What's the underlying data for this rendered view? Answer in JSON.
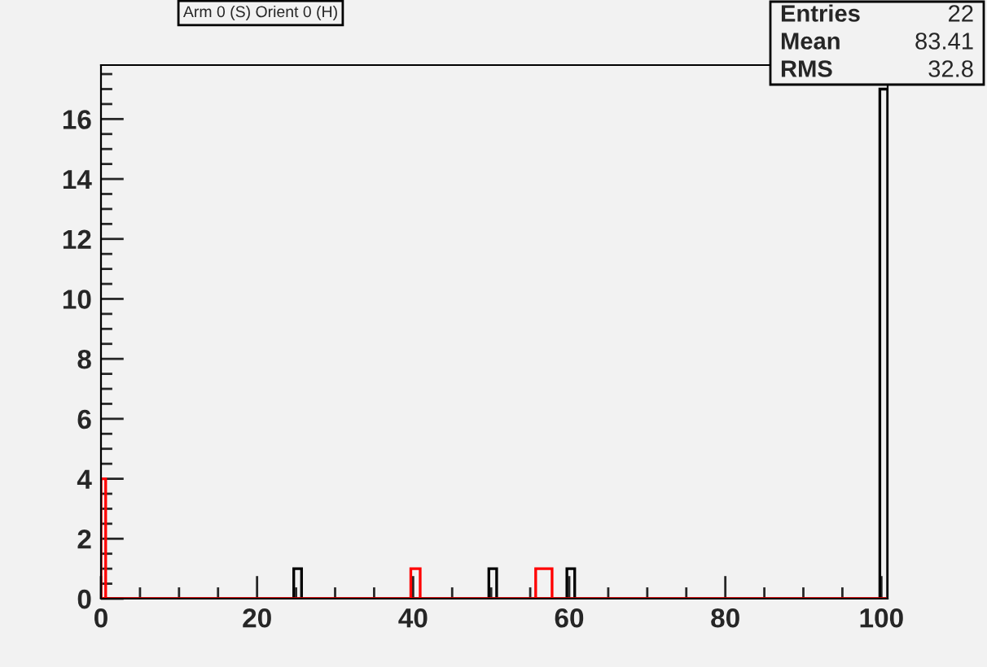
{
  "chart_data": {
    "type": "histogram",
    "title": "Arm 0 (S) Orient 0 (H)",
    "series": [
      {
        "color": "#000000",
        "values": [
          0,
          0,
          1,
          0,
          0,
          0,
          1,
          0,
          0,
          0,
          1,
          0,
          17
        ]
      },
      {
        "color": "#ff0000",
        "values": [
          4,
          0,
          0,
          0,
          1,
          0,
          0,
          0,
          1,
          0,
          0,
          0,
          0
        ]
      }
    ],
    "bins": [
      0,
      0.6,
      24.7,
      25.7,
      39.7,
      40.9,
      49.7,
      50.7,
      55.7,
      57.8,
      59.7,
      60.7,
      99.8,
      100.8
    ],
    "xlim": [
      0,
      100.8
    ],
    "ylim": [
      0,
      17.8
    ],
    "xticks": [
      0,
      {
        "value": 5,
        "label": null
      },
      {
        "value": 10,
        "label": null
      },
      {
        "value": 15,
        "label": null
      },
      20,
      {
        "value": 25,
        "label": null
      },
      {
        "value": 30,
        "label": null
      },
      {
        "value": 35,
        "label": null
      },
      40,
      {
        "value": 45,
        "label": null
      },
      {
        "value": 50,
        "label": null
      },
      {
        "value": 55,
        "label": null
      },
      60,
      {
        "value": 65,
        "label": null
      },
      {
        "value": 70,
        "label": null
      },
      {
        "value": 75,
        "label": null
      },
      80,
      {
        "value": 85,
        "label": null
      },
      {
        "value": 90,
        "label": null
      },
      {
        "value": 95,
        "label": null
      },
      100
    ],
    "yticks": [
      0,
      {
        "value": 0.5,
        "label": null
      },
      {
        "value": 1,
        "label": null
      },
      {
        "value": 1.5,
        "label": null
      },
      2,
      {
        "value": 2.5,
        "label": null
      },
      {
        "value": 3,
        "label": null
      },
      {
        "value": 3.5,
        "label": null
      },
      4,
      {
        "value": 4.5,
        "label": null
      },
      {
        "value": 5,
        "label": null
      },
      {
        "value": 5.5,
        "label": null
      },
      6,
      {
        "value": 6.5,
        "label": null
      },
      {
        "value": 7,
        "label": null
      },
      {
        "value": 7.5,
        "label": null
      },
      8,
      {
        "value": 8.5,
        "label": null
      },
      {
        "value": 9,
        "label": null
      },
      {
        "value": 9.5,
        "label": null
      },
      10,
      {
        "value": 10.5,
        "label": null
      },
      {
        "value": 11,
        "label": null
      },
      {
        "value": 11.5,
        "label": null
      },
      12,
      {
        "value": 12.5,
        "label": null
      },
      {
        "value": 13,
        "label": null
      },
      {
        "value": 13.5,
        "label": null
      },
      14,
      {
        "value": 14.5,
        "label": null
      },
      {
        "value": 15,
        "label": null
      },
      {
        "value": 15.5,
        "label": null
      },
      16,
      {
        "value": 16.5,
        "label": null
      },
      {
        "value": 17,
        "label": null
      },
      {
        "value": 17.5,
        "label": null
      }
    ],
    "annotations": [
      "Entries",
      "22",
      "Mean",
      "83.41",
      "RMS",
      "32.8"
    ],
    "grid": false,
    "legend": false
  }
}
